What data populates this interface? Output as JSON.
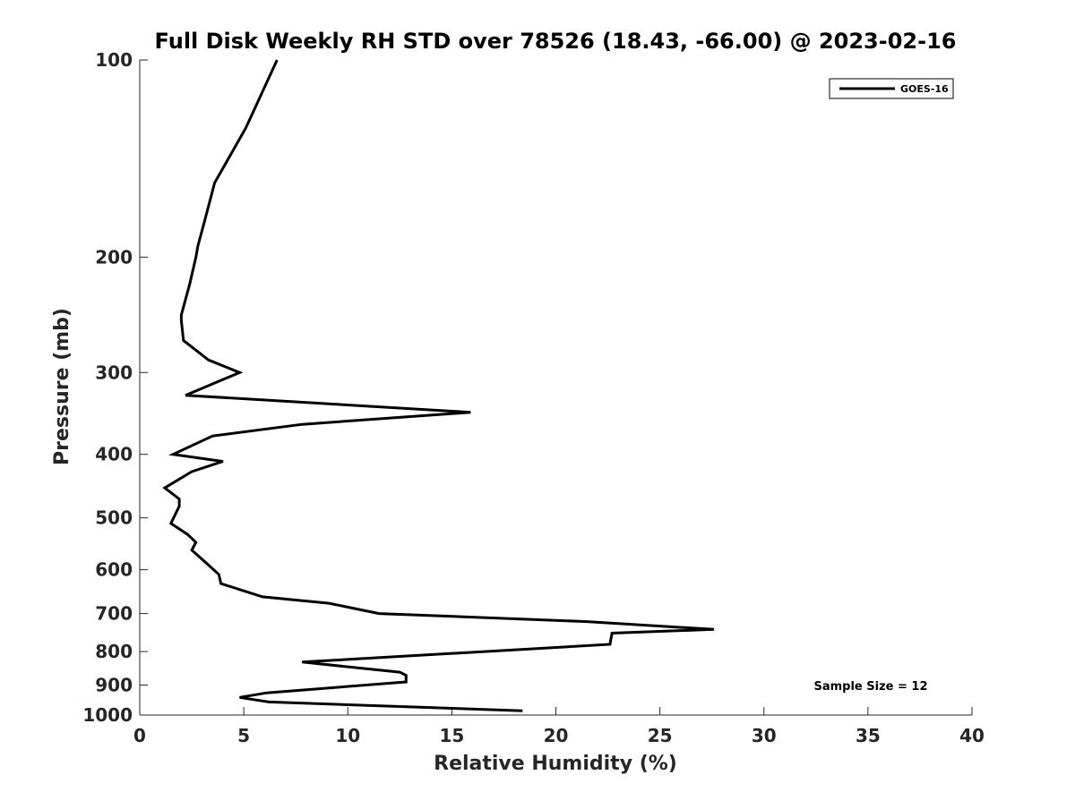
{
  "chart_data": {
    "type": "line",
    "title": "Full Disk Weekly RH STD over 78526 (18.43, -66.00) @ 2023-02-16",
    "xlabel": "Relative Humidity (%)",
    "ylabel": "Pressure (mb)",
    "xlim": [
      0,
      40
    ],
    "ylim": [
      100,
      1000
    ],
    "yscale": "log",
    "y_reversed": true,
    "xticks": [
      0,
      5,
      10,
      15,
      20,
      25,
      30,
      35,
      40
    ],
    "yticks": [
      100,
      200,
      300,
      400,
      500,
      600,
      700,
      800,
      900,
      1000
    ],
    "legend": {
      "position": "top-right",
      "entries": [
        "GOES-16"
      ]
    },
    "annotation": "Sample Size = 12",
    "series": [
      {
        "name": "GOES-16",
        "color": "#000000",
        "x": [
          6.6,
          5.1,
          3.6,
          3.1,
          2.8,
          2.7,
          2.4,
          2.0,
          2.0,
          2.1,
          3.3,
          4.8,
          2.2,
          15.9,
          7.8,
          3.5,
          1.6,
          4.0,
          2.5,
          1.2,
          1.9,
          1.9,
          1.5,
          2.3,
          2.7,
          2.5,
          3.3,
          3.8,
          3.9,
          5.9,
          9.1,
          11.5,
          21.5,
          27.6,
          22.7,
          22.6,
          7.8,
          12.5,
          12.8,
          12.8,
          6.1,
          4.8,
          6.2,
          18.4
        ],
        "y": [
          100,
          127,
          154,
          177,
          192,
          200,
          220,
          245,
          250,
          268,
          287,
          300,
          325,
          345,
          360,
          375,
          400,
          410,
          425,
          450,
          468,
          480,
          510,
          530,
          545,
          560,
          590,
          610,
          630,
          660,
          675,
          700,
          720,
          740,
          750,
          780,
          830,
          860,
          870,
          890,
          925,
          940,
          955,
          985
        ]
      }
    ]
  }
}
